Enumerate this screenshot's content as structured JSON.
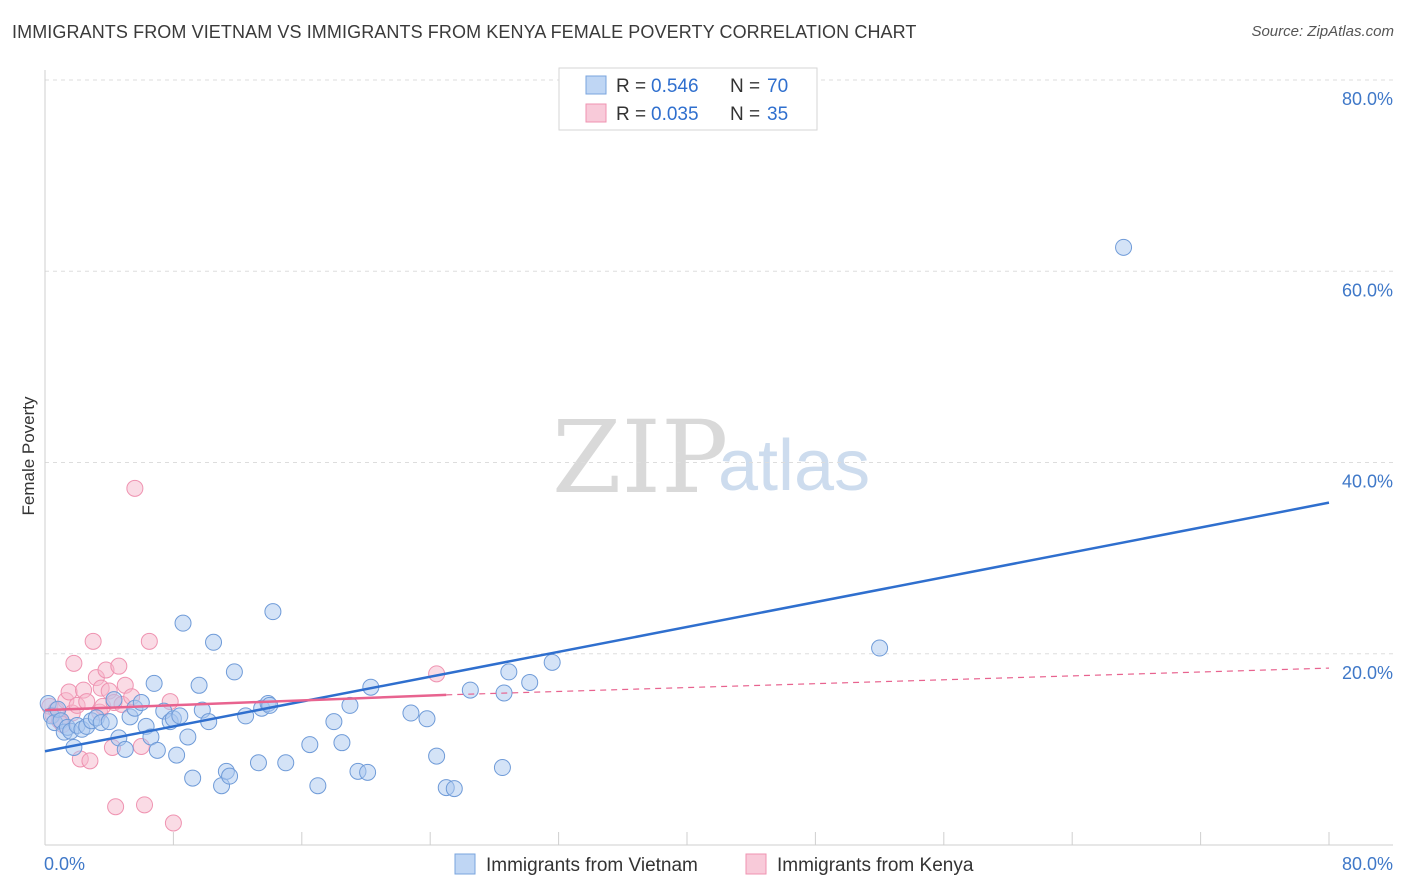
{
  "header": {
    "title": "IMMIGRANTS FROM VIETNAM VS IMMIGRANTS FROM KENYA FEMALE POVERTY CORRELATION CHART",
    "source": "Source: ZipAtlas.com"
  },
  "watermark": {
    "zip": "ZIP",
    "atlas": "atlas"
  },
  "colors": {
    "vietnam": "#2f6fce",
    "vietnam_fill": "#a9c8f0",
    "kenya": "#e8638f",
    "kenya_fill": "#f6b8cc",
    "grid": "#dddddd",
    "tick_text": "#3f78c8"
  },
  "stats_legend": {
    "rows": [
      {
        "r_label": "R =",
        "r_value": "0.546",
        "n_label": "N =",
        "n_value": "70"
      },
      {
        "r_label": "R =",
        "r_value": "0.035",
        "n_label": "N =",
        "n_value": "35"
      }
    ]
  },
  "chart_data": {
    "type": "scatter",
    "title": "IMMIGRANTS FROM VIETNAM VS IMMIGRANTS FROM KENYA FEMALE POVERTY CORRELATION CHART",
    "xlabel": "",
    "ylabel": "Female Poverty",
    "xlim": [
      0,
      80
    ],
    "ylim": [
      0,
      80
    ],
    "x_tick_labels": [
      "0.0%",
      "80.0%"
    ],
    "y_tick_labels": [
      "20.0%",
      "40.0%",
      "60.0%",
      "80.0%"
    ],
    "y_ticks": [
      20,
      40,
      60,
      80
    ],
    "x_minor_ticks": [
      8,
      16,
      24,
      32,
      40,
      48,
      56,
      64,
      72,
      80
    ],
    "legend_position": "bottom",
    "series": [
      {
        "name": "Immigrants from Vietnam",
        "R": 0.546,
        "N": 70,
        "trend": {
          "x": [
            0,
            80
          ],
          "y": [
            9.8,
            35.8
          ]
        },
        "points": [
          [
            0.2,
            14.8
          ],
          [
            0.4,
            13.5
          ],
          [
            0.6,
            12.8
          ],
          [
            0.8,
            14.2
          ],
          [
            1.0,
            13.0
          ],
          [
            1.2,
            11.8
          ],
          [
            1.4,
            12.3
          ],
          [
            1.6,
            11.9
          ],
          [
            1.8,
            10.2
          ],
          [
            2.0,
            12.5
          ],
          [
            2.3,
            12.1
          ],
          [
            2.6,
            12.4
          ],
          [
            2.9,
            13.0
          ],
          [
            3.2,
            13.3
          ],
          [
            3.5,
            12.8
          ],
          [
            4.0,
            12.9
          ],
          [
            4.3,
            15.2
          ],
          [
            4.6,
            11.2
          ],
          [
            5.0,
            10.0
          ],
          [
            5.3,
            13.4
          ],
          [
            5.6,
            14.3
          ],
          [
            6.0,
            14.9
          ],
          [
            6.3,
            12.4
          ],
          [
            6.6,
            11.3
          ],
          [
            6.8,
            16.9
          ],
          [
            7.0,
            9.9
          ],
          [
            7.4,
            14.0
          ],
          [
            7.8,
            12.9
          ],
          [
            8.0,
            13.2
          ],
          [
            8.2,
            9.4
          ],
          [
            8.4,
            13.5
          ],
          [
            8.6,
            23.2
          ],
          [
            8.9,
            11.3
          ],
          [
            9.2,
            7.0
          ],
          [
            9.6,
            16.7
          ],
          [
            9.8,
            14.1
          ],
          [
            10.2,
            12.9
          ],
          [
            10.5,
            21.2
          ],
          [
            11.0,
            6.2
          ],
          [
            11.3,
            7.7
          ],
          [
            11.5,
            7.2
          ],
          [
            11.8,
            18.1
          ],
          [
            12.5,
            13.5
          ],
          [
            13.3,
            8.6
          ],
          [
            13.5,
            14.3
          ],
          [
            13.9,
            14.8
          ],
          [
            14.0,
            14.6
          ],
          [
            14.2,
            24.4
          ],
          [
            15.0,
            8.6
          ],
          [
            16.5,
            10.5
          ],
          [
            17.0,
            6.2
          ],
          [
            18.0,
            12.9
          ],
          [
            18.5,
            10.7
          ],
          [
            19.0,
            14.6
          ],
          [
            19.5,
            7.7
          ],
          [
            20.1,
            7.6
          ],
          [
            20.3,
            16.5
          ],
          [
            22.8,
            13.8
          ],
          [
            23.8,
            13.2
          ],
          [
            24.4,
            9.3
          ],
          [
            25.0,
            6.0
          ],
          [
            26.5,
            16.2
          ],
          [
            28.5,
            8.1
          ],
          [
            28.6,
            15.9
          ],
          [
            28.9,
            18.1
          ],
          [
            30.2,
            17.0
          ],
          [
            31.6,
            19.1
          ],
          [
            52.0,
            20.6
          ],
          [
            67.2,
            62.5
          ],
          [
            25.5,
            5.9
          ]
        ]
      },
      {
        "name": "Immigrants from Kenya",
        "R": 0.035,
        "N": 35,
        "trend": {
          "x": [
            0,
            25
          ],
          "y": [
            14.1,
            15.7
          ]
        },
        "trend_extension": {
          "x": [
            25,
            80
          ],
          "y": [
            15.7,
            18.5
          ]
        },
        "points": [
          [
            0.3,
            14.5
          ],
          [
            0.5,
            13.6
          ],
          [
            0.7,
            14.1
          ],
          [
            0.9,
            13.0
          ],
          [
            1.1,
            12.6
          ],
          [
            1.3,
            15.1
          ],
          [
            1.5,
            16.0
          ],
          [
            1.7,
            13.8
          ],
          [
            1.8,
            19.0
          ],
          [
            2.0,
            14.6
          ],
          [
            2.2,
            9.0
          ],
          [
            2.4,
            16.2
          ],
          [
            2.6,
            15.0
          ],
          [
            2.8,
            8.8
          ],
          [
            3.0,
            21.3
          ],
          [
            3.2,
            17.5
          ],
          [
            3.4,
            13.9
          ],
          [
            3.5,
            16.4
          ],
          [
            3.6,
            14.5
          ],
          [
            3.8,
            18.3
          ],
          [
            4.0,
            16.1
          ],
          [
            4.2,
            10.2
          ],
          [
            4.3,
            14.9
          ],
          [
            4.4,
            4.0
          ],
          [
            4.6,
            18.7
          ],
          [
            4.8,
            14.7
          ],
          [
            5.0,
            16.7
          ],
          [
            5.4,
            15.5
          ],
          [
            5.6,
            37.3
          ],
          [
            6.0,
            10.3
          ],
          [
            6.2,
            4.2
          ],
          [
            6.5,
            21.3
          ],
          [
            7.8,
            15.0
          ],
          [
            8.0,
            2.3
          ],
          [
            24.4,
            17.9
          ]
        ]
      }
    ]
  },
  "bottom_legend": {
    "items": [
      {
        "label": "Immigrants from Vietnam"
      },
      {
        "label": "Immigrants from Kenya"
      }
    ]
  }
}
